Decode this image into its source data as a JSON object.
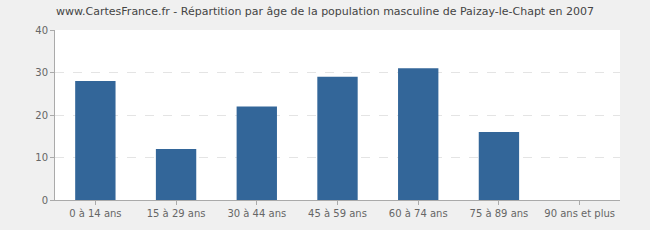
{
  "chart_data": {
    "type": "bar",
    "title": "www.CartesFrance.fr - Répartition par âge de la population masculine de Paizay-le-Chapt en 2007",
    "categories": [
      "0 à 14 ans",
      "15 à 29 ans",
      "30 à 44 ans",
      "45 à 59 ans",
      "60 à 74 ans",
      "75 à 89 ans",
      "90 ans et plus"
    ],
    "values": [
      28,
      12,
      22,
      29,
      31,
      16,
      0
    ],
    "color": "#336699",
    "ylim": [
      0,
      40
    ],
    "yticks": [
      0,
      10,
      20,
      30,
      40
    ],
    "grid": true
  }
}
